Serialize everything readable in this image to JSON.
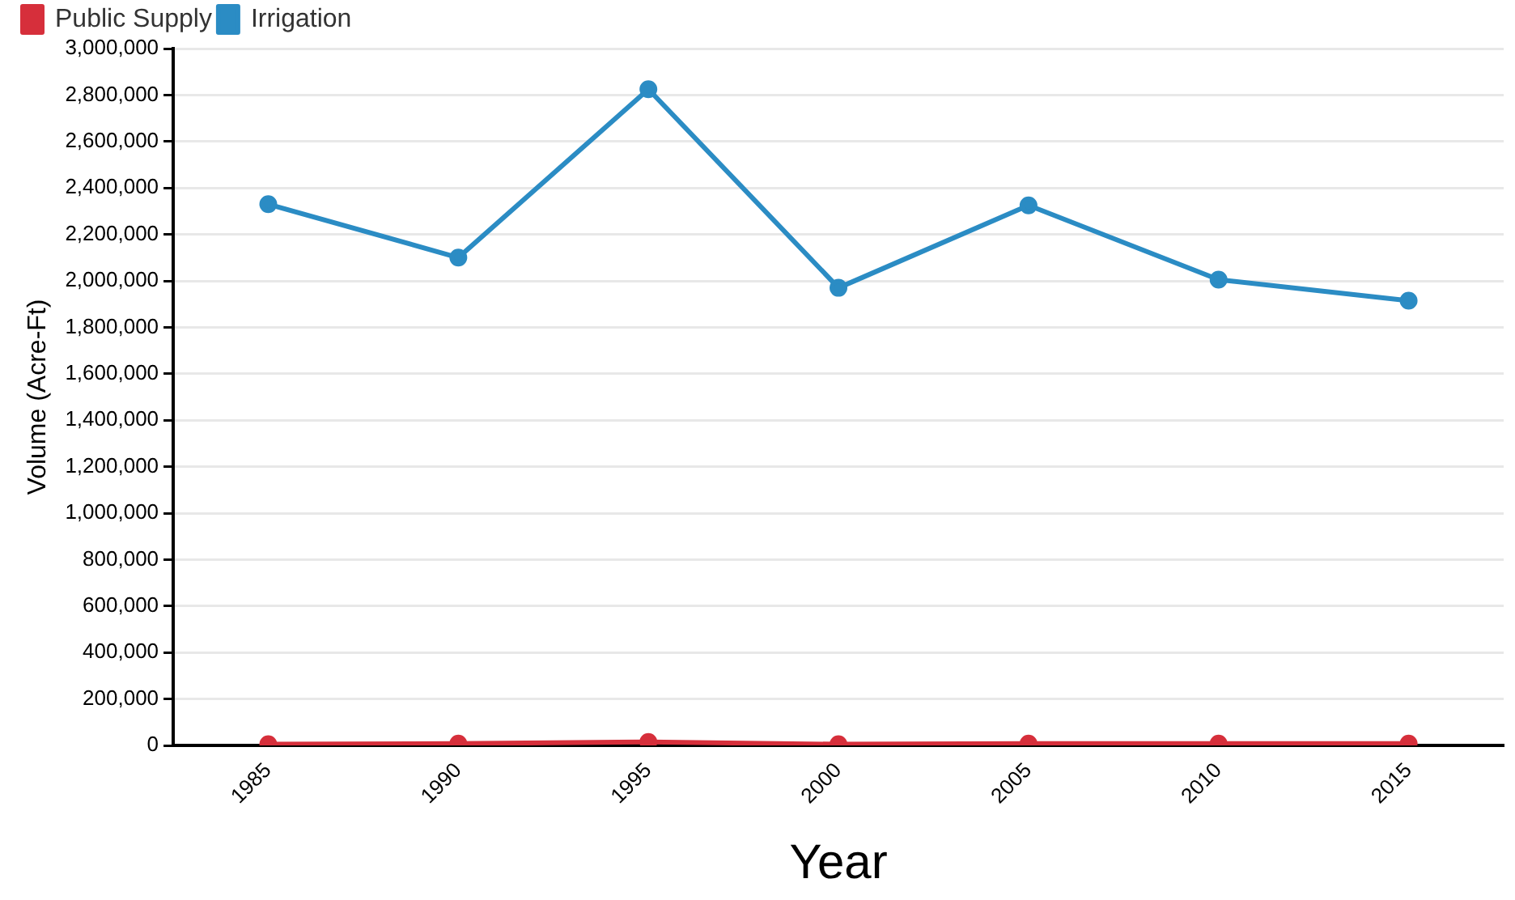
{
  "chart_data": {
    "type": "line",
    "xlabel": "Year",
    "ylabel": "Volume (Acre-Ft)",
    "categories": [
      "1985",
      "1990",
      "1995",
      "2000",
      "2005",
      "2010",
      "2015"
    ],
    "series": [
      {
        "name": "Public Supply",
        "color": "#d62f3b",
        "values": [
          5000,
          8000,
          15000,
          5000,
          8000,
          8000,
          8000
        ]
      },
      {
        "name": "Irrigation",
        "color": "#2b8cc4",
        "values": [
          2330000,
          2100000,
          2825000,
          1970000,
          2325000,
          2005000,
          1915000
        ]
      }
    ],
    "ylim": [
      0,
      3000000
    ],
    "yticks": [
      0,
      {
        "value": 200000,
        "label": "200,000"
      },
      {
        "value": 400000,
        "label": "400,000"
      },
      {
        "value": 600000,
        "label": "600,000"
      },
      {
        "value": 800000,
        "label": "800,000"
      },
      {
        "value": 1000000,
        "label": "1,000,000"
      },
      {
        "value": 1200000,
        "label": "1,200,000"
      },
      {
        "value": 1400000,
        "label": "1,400,000"
      },
      {
        "value": 1600000,
        "label": "1,600,000"
      },
      {
        "value": 1800000,
        "label": "1,800,000"
      },
      {
        "value": 2000000,
        "label": "2,000,000"
      },
      {
        "value": 2200000,
        "label": "2,200,000"
      },
      {
        "value": 2400000,
        "label": "2,400,000"
      },
      {
        "value": 2600000,
        "label": "2,600,000"
      },
      {
        "value": 2800000,
        "label": "2,800,000"
      },
      {
        "value": 3000000,
        "label": "3,000,000"
      }
    ],
    "grid": "y",
    "legend": "top left",
    "marker": "circle",
    "line_style": "solid"
  }
}
